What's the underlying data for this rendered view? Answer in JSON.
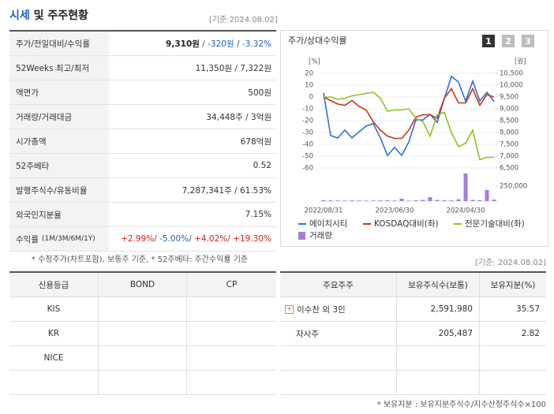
{
  "header": {
    "title": [
      "시세",
      "및 주주현황"
    ],
    "date": "[기준:2024.08.02]"
  },
  "quote_table": {
    "rows": [
      {
        "label": "주가/전일대비/수익률",
        "value": [
          {
            "text": "9,310원",
            "color": "#222222",
            "bold": true
          },
          {
            "text": " / ",
            "color": "#555555"
          },
          {
            "text": "-320원",
            "color": "#1a5fd0"
          },
          {
            "text": " / ",
            "color": "#555555"
          },
          {
            "text": "-3.32%",
            "color": "#1a5fd0"
          }
        ]
      },
      {
        "label": "52Weeks 최고/최저",
        "value": "11,350원 / 7,322원"
      },
      {
        "label": "액면가",
        "value": "500원"
      },
      {
        "label": "거래량/거래대금",
        "value": "34,448주 / 3억원"
      },
      {
        "label": "시가총액",
        "value": "678억원"
      },
      {
        "label": "52주베타",
        "value": "0.52"
      },
      {
        "label": "발행주식수/유동비율",
        "value": "7,287,341주 / 61.53%"
      },
      {
        "label": "외국인지분율",
        "value": "7.15%"
      },
      {
        "label": "수익률",
        "label_note": "(1M/3M/6M/1Y)",
        "value": [
          {
            "text": "+2.99%",
            "color": "#d0201a"
          },
          {
            "text": "/ ",
            "color": "#555555"
          },
          {
            "text": "-5.00%",
            "color": "#1a5fd0"
          },
          {
            "text": "/ ",
            "color": "#555555"
          },
          {
            "text": "+4.02%",
            "color": "#d0201a"
          },
          {
            "text": "/ ",
            "color": "#555555"
          },
          {
            "text": "+19.30%",
            "color": "#d0201a"
          }
        ]
      }
    ]
  },
  "quote_note": "* 수정주가(차트포함), 보통주 기준, * 52주베타: 주간수익률 기준",
  "chart_data": {
    "type": "line",
    "title": "주가/상대수익률",
    "buttons": [
      "1",
      "2",
      "3"
    ],
    "yunit": "[%]",
    "y2unit": "[원]",
    "x": [
      "2022/08/31",
      null,
      null,
      null,
      null,
      null,
      null,
      null,
      null,
      null,
      "2023/06/30",
      null,
      null,
      null,
      null,
      null,
      null,
      null,
      null,
      null,
      "2024/04/30",
      null,
      null,
      null,
      null
    ],
    "ylim": [
      -60,
      20
    ],
    "yticks": [
      20,
      10,
      0,
      -10,
      -20,
      -30,
      -40,
      -50,
      -60
    ],
    "y2lim": [
      6500,
      10500
    ],
    "y2ticks": [
      {
        "value": 10500,
        "label": "10,500"
      },
      {
        "value": 10000,
        "label": "10,000"
      },
      {
        "value": 9500,
        "label": "9,500"
      },
      {
        "value": 9000,
        "label": "9,000"
      },
      {
        "value": 8500,
        "label": "8,500"
      },
      {
        "value": 8000,
        "label": "8,000"
      },
      {
        "value": 7500,
        "label": "7,500"
      },
      {
        "value": 7000,
        "label": "7,000"
      },
      {
        "value": 6500,
        "label": "6,500"
      }
    ],
    "y3lim": [
      0,
      500000
    ],
    "y3ticks": [
      {
        "value": 250000,
        "label": "250,000"
      }
    ],
    "grid": true,
    "series": [
      {
        "name": "에이치시티",
        "color": "#2f6fd6",
        "axis": "y2",
        "values": [
          9670,
          7870,
          7770,
          8100,
          7770,
          8030,
          8270,
          8370,
          7770,
          7030,
          7370,
          7030,
          7600,
          8530,
          8530,
          8770,
          8430,
          9430,
          10370,
          10130,
          9330,
          10170,
          9330,
          9700,
          9310
        ]
      },
      {
        "name": "KOSDAQ대비(좌)",
        "color": "#c8341a",
        "values": [
          0,
          -3,
          -6,
          -7,
          -3,
          -8,
          -11,
          -21,
          -28,
          -33,
          -35,
          -35,
          -28,
          -17,
          -15,
          -15,
          -18,
          -1,
          7,
          -5,
          -5,
          7,
          -7,
          2,
          0
        ]
      },
      {
        "name": "전문기술대비(좌)",
        "color": "#8fc21f",
        "values": [
          0,
          0,
          -2,
          -1,
          1,
          2,
          3,
          4,
          -1,
          -12,
          -11,
          -11,
          -10,
          -18,
          -21,
          -33,
          -15,
          -13,
          -30,
          -42,
          -39,
          -28,
          -53,
          -51,
          -51
        ]
      },
      {
        "name": "거래량",
        "color": "#a47fd9",
        "type": "bar",
        "axis": "y3",
        "values": [
          15000,
          12000,
          10000,
          8000,
          12000,
          10000,
          8000,
          10000,
          12000,
          15000,
          10000,
          40000,
          8000,
          15000,
          20000,
          65000,
          20000,
          15000,
          12000,
          30000,
          460000,
          20000,
          15000,
          185000,
          25000
        ]
      }
    ]
  },
  "chart_date": "[기준: 2024.08.02]",
  "credit_table": {
    "headers": [
      "신용등급",
      "BOND",
      "CP"
    ],
    "rows": [
      [
        "KIS"
      ],
      [
        "KR"
      ],
      [
        "NICE"
      ]
    ]
  },
  "holder_table": {
    "headers": [
      "주요주주",
      "보유주식수(보통)",
      "보유지분(%)"
    ],
    "rows": [
      [
        "이수찬 외 3인",
        "2,591,980",
        "35.57"
      ],
      [
        "자사주",
        "205,487",
        "2.82"
      ]
    ]
  },
  "holder_note": "* 보유지분 : 보유지분주식수/지수산정주식수×100"
}
